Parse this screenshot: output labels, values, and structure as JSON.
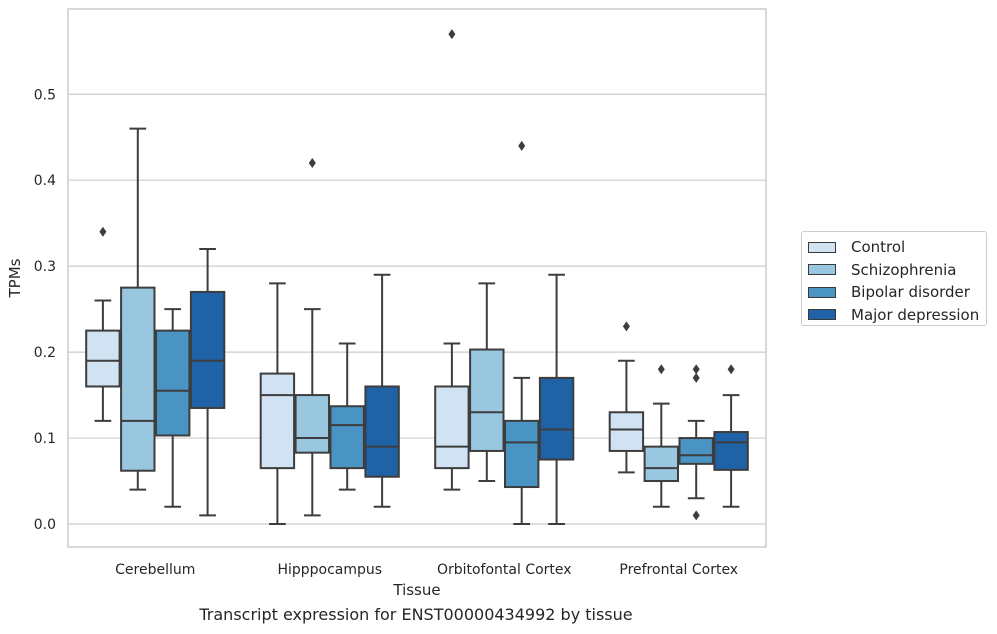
{
  "caption": "Transcript expression for ENST00000434992 by tissue",
  "chart_data": {
    "type": "box",
    "xlabel": "Tissue",
    "ylabel": "TPMs",
    "ylim": [
      -0.028,
      0.6
    ],
    "yticks": [
      0.0,
      0.1,
      0.2,
      0.3,
      0.4,
      0.5
    ],
    "ytick_labels": [
      "0.0",
      "0.1",
      "0.2",
      "0.3",
      "0.4",
      "0.5"
    ],
    "grid": "horizontal",
    "legend_position": "right",
    "categories": [
      "Cerebellum",
      "Hipppocampus",
      "Orbitofontal Cortex",
      "Prefrontal Cortex"
    ],
    "series": [
      {
        "name": "Control",
        "color": "#d1e2f2",
        "boxes": [
          {
            "whislo": 0.12,
            "q1": 0.16,
            "med": 0.19,
            "q3": 0.225,
            "whishi": 0.26,
            "fliers": [
              0.34
            ]
          },
          {
            "whislo": 0.0,
            "q1": 0.065,
            "med": 0.15,
            "q3": 0.175,
            "whishi": 0.28,
            "fliers": []
          },
          {
            "whislo": 0.04,
            "q1": 0.065,
            "med": 0.09,
            "q3": 0.16,
            "whishi": 0.21,
            "fliers": [
              0.57
            ]
          },
          {
            "whislo": 0.06,
            "q1": 0.085,
            "med": 0.11,
            "q3": 0.13,
            "whishi": 0.19,
            "fliers": [
              0.23
            ]
          }
        ]
      },
      {
        "name": "Schizophrenia",
        "color": "#9ac7e0",
        "boxes": [
          {
            "whislo": 0.04,
            "q1": 0.062,
            "med": 0.12,
            "q3": 0.275,
            "whishi": 0.46,
            "fliers": []
          },
          {
            "whislo": 0.01,
            "q1": 0.083,
            "med": 0.1,
            "q3": 0.15,
            "whishi": 0.25,
            "fliers": [
              0.42
            ]
          },
          {
            "whislo": 0.05,
            "q1": 0.085,
            "med": 0.13,
            "q3": 0.203,
            "whishi": 0.28,
            "fliers": []
          },
          {
            "whislo": 0.02,
            "q1": 0.05,
            "med": 0.065,
            "q3": 0.09,
            "whishi": 0.14,
            "fliers": [
              0.18
            ]
          }
        ]
      },
      {
        "name": "Bipolar disorder",
        "color": "#4a94c4",
        "boxes": [
          {
            "whislo": 0.02,
            "q1": 0.103,
            "med": 0.155,
            "q3": 0.225,
            "whishi": 0.25,
            "fliers": []
          },
          {
            "whislo": 0.04,
            "q1": 0.065,
            "med": 0.115,
            "q3": 0.137,
            "whishi": 0.21,
            "fliers": []
          },
          {
            "whislo": 0.0,
            "q1": 0.043,
            "med": 0.095,
            "q3": 0.12,
            "whishi": 0.17,
            "fliers": [
              0.44
            ]
          },
          {
            "whislo": 0.03,
            "q1": 0.07,
            "med": 0.08,
            "q3": 0.1,
            "whishi": 0.12,
            "fliers": [
              0.01,
              0.17,
              0.18
            ]
          }
        ]
      },
      {
        "name": "Major depression",
        "color": "#1f62a6",
        "boxes": [
          {
            "whislo": 0.01,
            "q1": 0.135,
            "med": 0.19,
            "q3": 0.27,
            "whishi": 0.32,
            "fliers": []
          },
          {
            "whislo": 0.02,
            "q1": 0.055,
            "med": 0.09,
            "q3": 0.16,
            "whishi": 0.29,
            "fliers": []
          },
          {
            "whislo": 0.0,
            "q1": 0.075,
            "med": 0.11,
            "q3": 0.17,
            "whishi": 0.29,
            "fliers": []
          },
          {
            "whislo": 0.02,
            "q1": 0.063,
            "med": 0.095,
            "q3": 0.107,
            "whishi": 0.15,
            "fliers": [
              0.18
            ]
          }
        ]
      }
    ]
  }
}
